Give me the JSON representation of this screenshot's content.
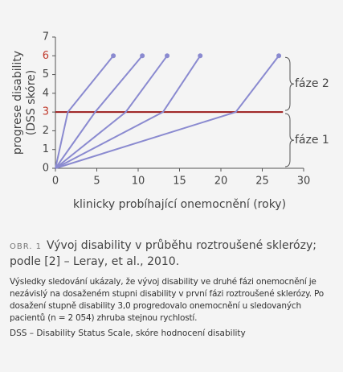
{
  "chart_data": {
    "type": "line",
    "xlabel": "klinicky probíhající onemocnění (roky)",
    "ylabel": [
      "progrese disability",
      "(DSS skóre)"
    ],
    "xlim": [
      0,
      30
    ],
    "ylim": [
      0,
      7
    ],
    "xticks": [
      0,
      5,
      10,
      15,
      20,
      25,
      30
    ],
    "yticks": [
      0,
      1,
      2,
      3,
      4,
      5,
      6,
      7
    ],
    "highlight_yticks": [
      3,
      6
    ],
    "highlight_color": "#c0392b",
    "series": [
      {
        "color": "#8a8ad0",
        "x": [
          0,
          1.5,
          7
        ],
        "values": [
          0,
          3,
          6
        ]
      },
      {
        "color": "#8a8ad0",
        "x": [
          0,
          4.8,
          10.5
        ],
        "values": [
          0,
          3,
          6
        ]
      },
      {
        "color": "#8a8ad0",
        "x": [
          0,
          8.5,
          13.5
        ],
        "values": [
          0,
          3,
          6
        ]
      },
      {
        "color": "#8a8ad0",
        "x": [
          0,
          13,
          17.5
        ],
        "values": [
          0,
          3,
          6
        ]
      },
      {
        "color": "#8a8ad0",
        "x": [
          0,
          21.8,
          27
        ],
        "values": [
          0,
          3,
          6
        ]
      }
    ],
    "hline": {
      "y": 3,
      "x": [
        0,
        27.5
      ],
      "color": "#9b1c1c"
    },
    "annotations": [
      {
        "text": "fáze 2",
        "y": [
          3,
          6
        ]
      },
      {
        "text": "fáze 1",
        "y": [
          0,
          3
        ]
      }
    ]
  },
  "caption": {
    "label": "OBR. 1",
    "title": "Vývoj disability v průběhu roztroušené sklerózy; podle [2] – Leray, et al., 2010.",
    "body": "Výsledky sledování ukázaly, že vývoj disability ve druhé fázi onemocnění je nezávislý na dosaženém stupni disability v první fázi roztroušené sklerózy. Po dosažení stupně disability 3,0 progredovalo onemocnění u sledovaných pacientů (n = 2 054) zhruba stejnou rychlostí.",
    "note": "DSS – Disability Status Scale, skóre hodnocení disability"
  }
}
